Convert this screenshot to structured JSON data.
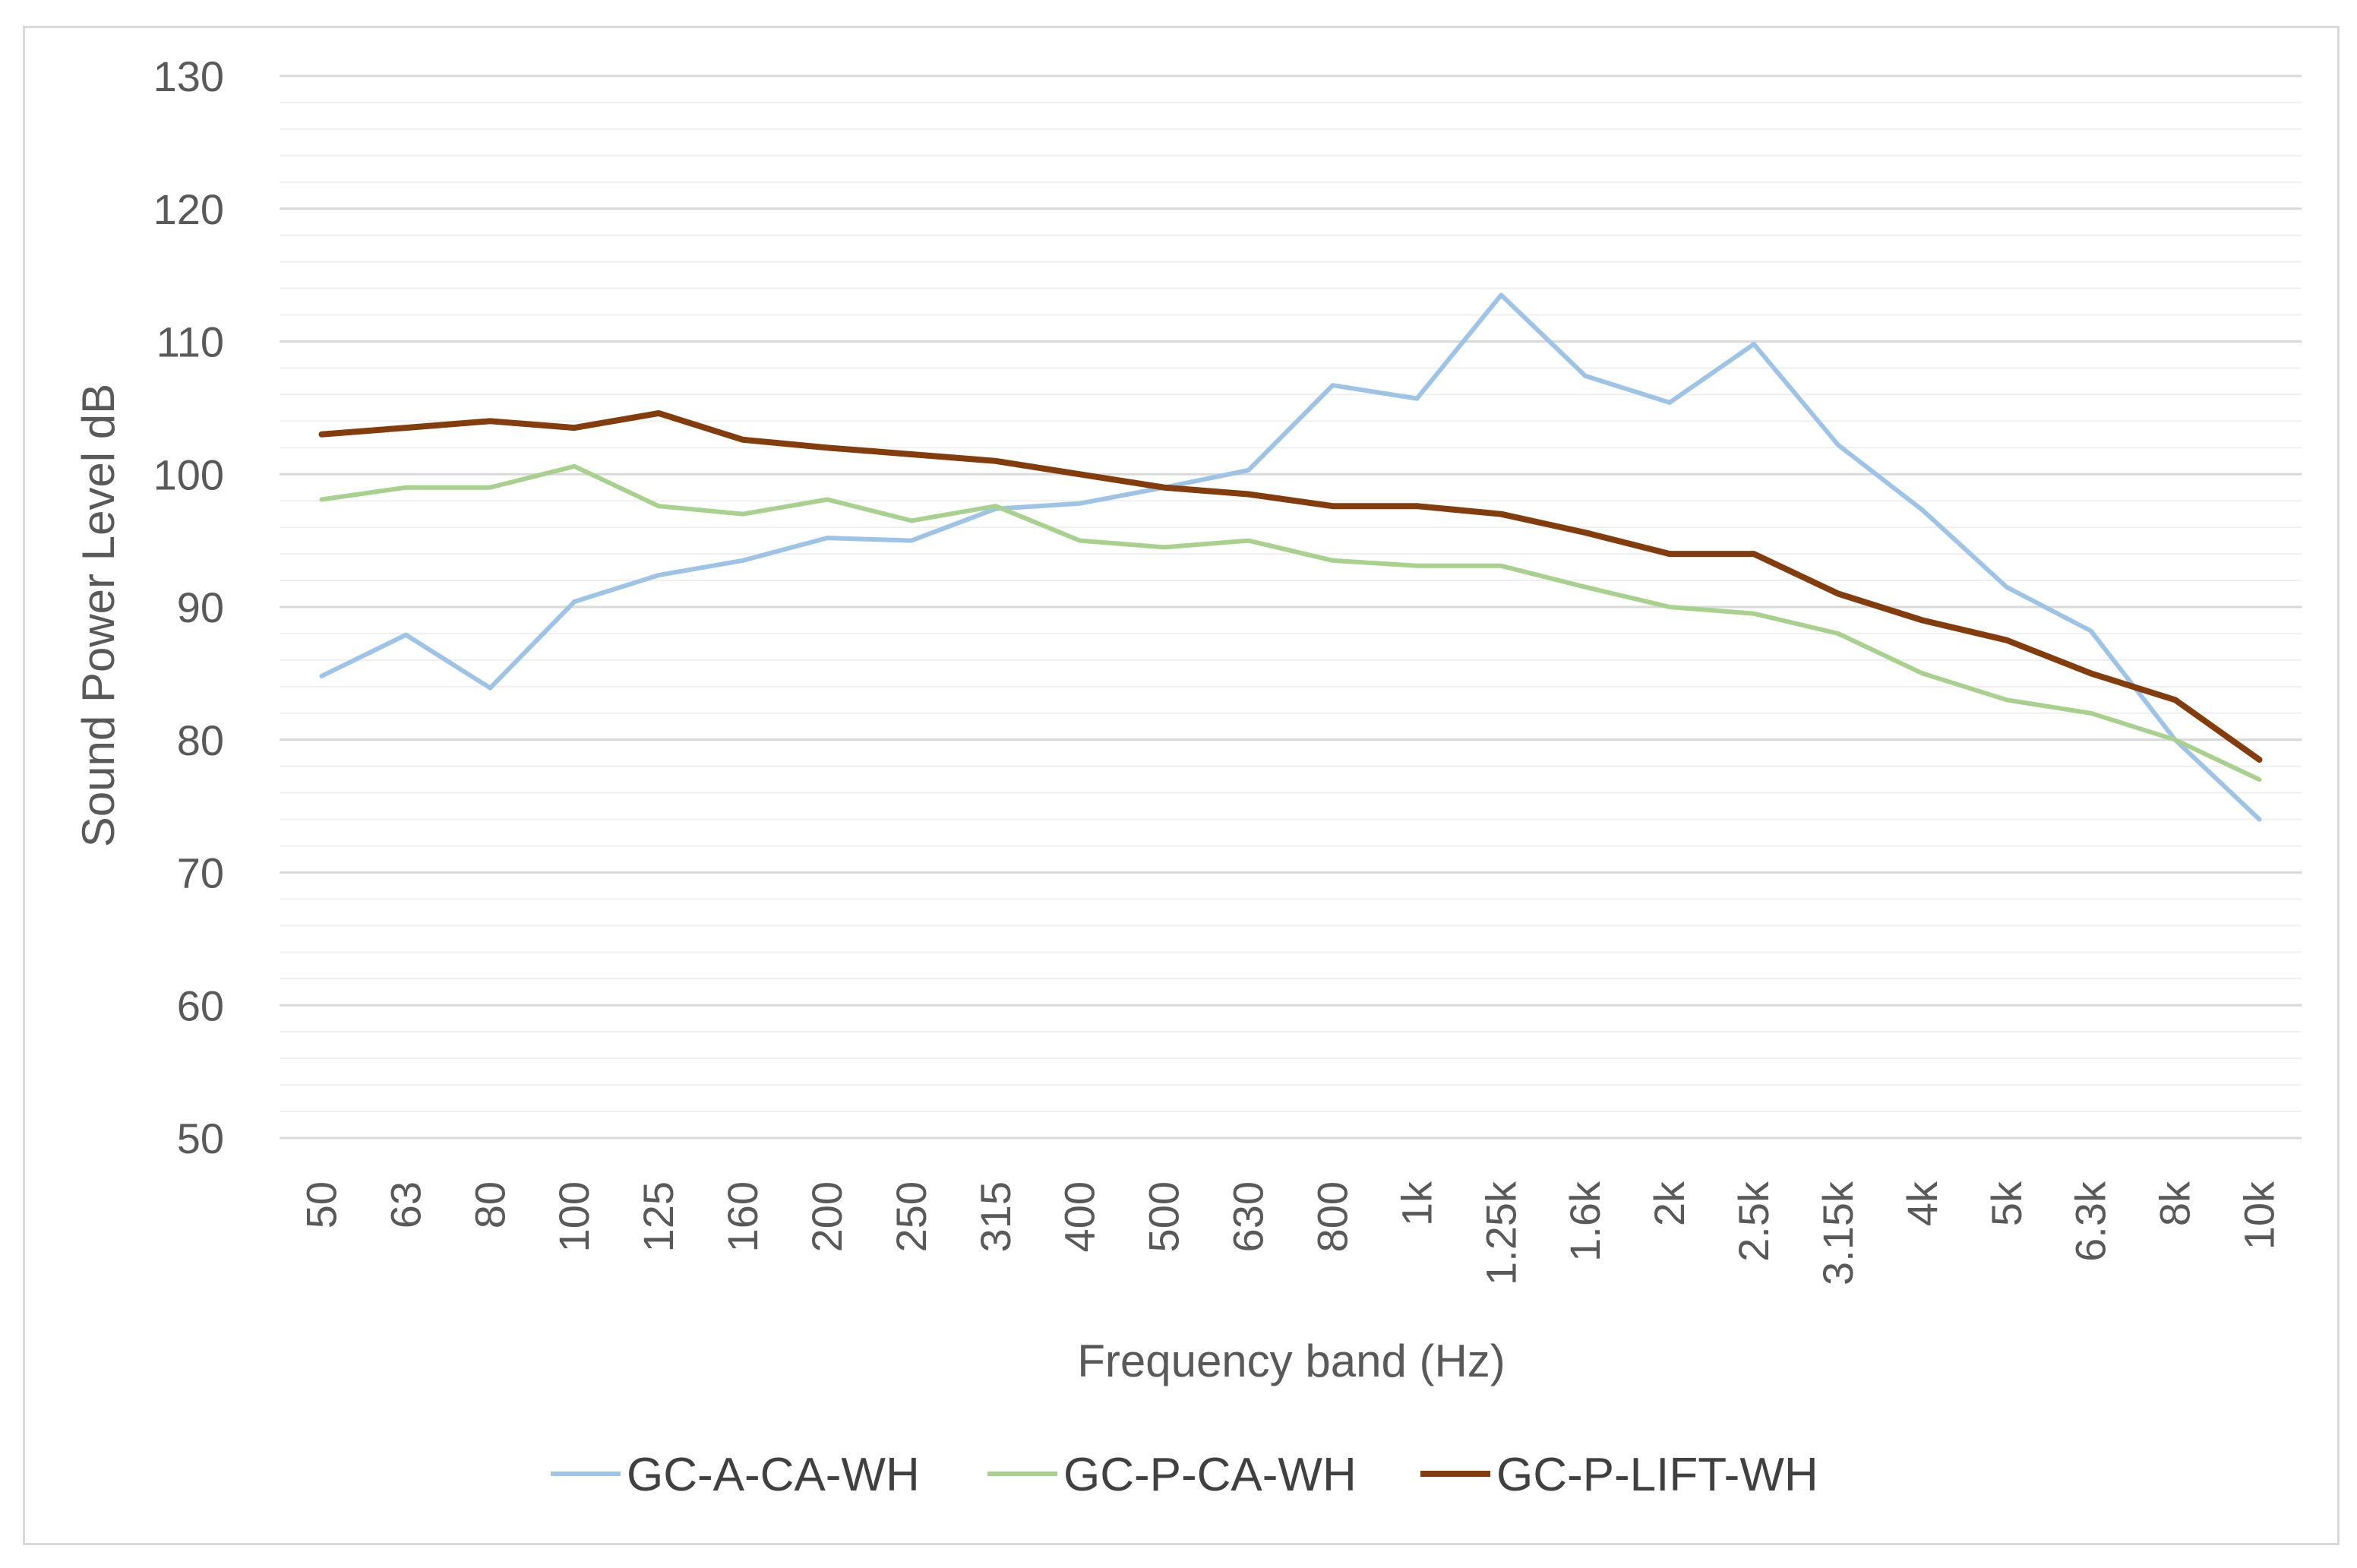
{
  "chart_data": {
    "type": "line",
    "title": "",
    "xlabel": "Frequency band (Hz)",
    "ylabel": "Sound Power Level dB",
    "ylim": [
      50,
      130
    ],
    "yticks": [
      50,
      60,
      70,
      80,
      90,
      100,
      110,
      120,
      130
    ],
    "minor_grid_step": 2,
    "legend_position": "bottom",
    "categories": [
      "50",
      "63",
      "80",
      "100",
      "125",
      "160",
      "200",
      "250",
      "315",
      "400",
      "500",
      "630",
      "800",
      "1k",
      "1.25k",
      "1.6k",
      "2k",
      "2.5k",
      "3.15k",
      "4k",
      "5k",
      "6.3k",
      "8k",
      "10k"
    ],
    "series": [
      {
        "name": "GC-A-CA-WH",
        "color": "#9dc3e6",
        "values": [
          84.8,
          87.9,
          83.9,
          90.4,
          92.4,
          93.5,
          95.2,
          95.0,
          97.4,
          97.8,
          99.0,
          100.3,
          106.7,
          105.7,
          113.5,
          107.4,
          105.4,
          109.8,
          102.2,
          97.3,
          91.5,
          88.2,
          80.0,
          74.0
        ]
      },
      {
        "name": "GC-P-CA-WH",
        "color": "#a9d18e",
        "values": [
          98.1,
          99.0,
          99.0,
          100.6,
          97.6,
          97.0,
          98.1,
          96.5,
          97.6,
          95.0,
          94.5,
          95.0,
          93.5,
          93.1,
          93.1,
          91.5,
          90.0,
          89.5,
          88.0,
          85.0,
          83.0,
          82.0,
          80.0,
          77.0
        ]
      },
      {
        "name": "GC-P-LIFT-WH",
        "color": "#843c0c",
        "values": [
          103.0,
          103.5,
          104.0,
          103.5,
          104.6,
          102.6,
          102.0,
          101.5,
          101.0,
          100.0,
          99.0,
          98.5,
          97.6,
          97.6,
          97.0,
          95.6,
          94.0,
          94.0,
          91.0,
          89.0,
          87.5,
          85.0,
          83.0,
          78.5
        ]
      }
    ]
  }
}
